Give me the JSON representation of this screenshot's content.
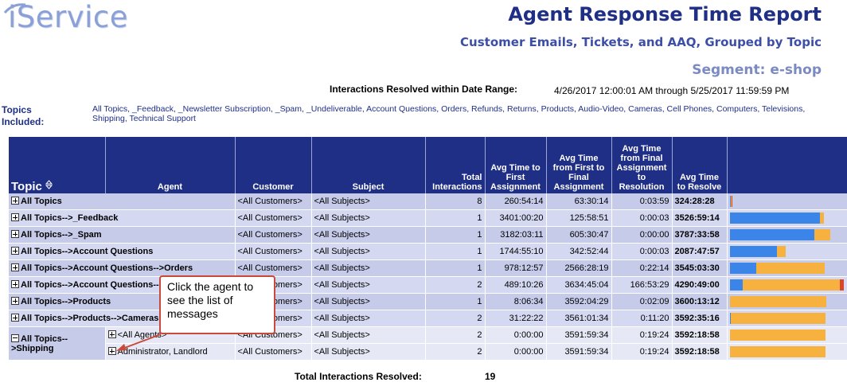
{
  "header": {
    "logo": "iService",
    "title": "Agent Response Time Report",
    "subtitle": "Customer Emails, Tickets, and AAQ, Grouped by Topic",
    "segment": "Segment: e-shop",
    "range_label": "Interactions Resolved within Date Range:",
    "range_value": "4/26/2017 12:00:01 AM through 5/25/2017 11:59:59 PM",
    "topics_label": "Topics Included:",
    "topics_list": "All Topics, _Feedback, _Newsletter Subscription, _Spam, _Undeliverable, Account Questions, Orders, Refunds, Returns, Products, Audio-Video, Cameras, Cell Phones, Computers, Televisions, Shipping, Technical Support"
  },
  "columns": {
    "topic": "Topic",
    "agent": "Agent",
    "customer": "Customer",
    "subject": "Subject",
    "total": "Total Interactions",
    "first": "Avg Time to First Assignment",
    "final": "Avg Time from First to Final Assignment",
    "resolution": "Avg Time from Final Assignment to Resolution",
    "resolve": "Avg Time to Resolve"
  },
  "rows": [
    {
      "topic": "All Topics",
      "agent": "",
      "customer": "<All Customers>",
      "subject": "<All Subjects>",
      "total": "8",
      "first": "260:54:14",
      "final": "63:30:14",
      "resolution": "0:03:59",
      "resolve": "324:28:28",
      "bar": [
        0.01,
        0.0025,
        0.0,
        0.0006
      ]
    },
    {
      "topic": "All Topics-->_Feedback",
      "agent": "",
      "customer": "<All Customers>",
      "subject": "<All Subjects>",
      "total": "1",
      "first": "3401:00:20",
      "final": "125:58:51",
      "resolution": "0:00:03",
      "resolve": "3526:59:14",
      "bar": [
        0.79,
        0.03,
        0.0,
        0.0
      ]
    },
    {
      "topic": "All Topics-->_Spam",
      "agent": "",
      "customer": "<All Customers>",
      "subject": "<All Subjects>",
      "total": "1",
      "first": "3182:03:11",
      "final": "605:30:47",
      "resolution": "0:00:00",
      "resolve": "3787:33:58",
      "bar": [
        0.74,
        0.14,
        0.0,
        0.0
      ]
    },
    {
      "topic": "All Topics-->Account Questions",
      "agent": "",
      "customer": "<All Customers>",
      "subject": "<All Subjects>",
      "total": "1",
      "first": "1744:55:10",
      "final": "342:52:44",
      "resolution": "0:00:03",
      "resolve": "2087:47:57",
      "bar": [
        0.41,
        0.08,
        0.0,
        0.0
      ]
    },
    {
      "topic": "All Topics-->Account Questions-->Orders",
      "agent": "",
      "customer": "<All Customers>",
      "subject": "<All Subjects>",
      "total": "1",
      "first": "978:12:57",
      "final": "2566:28:19",
      "resolution": "0:22:14",
      "resolve": "3545:03:30",
      "bar": [
        0.23,
        0.6,
        0.0,
        0.0
      ]
    },
    {
      "topic": "All Topics-->Account Questions-->Refunds",
      "agent": "",
      "customer": "<All Customers>",
      "subject": "<All Subjects>",
      "total": "2",
      "first": "489:10:26",
      "final": "3634:45:04",
      "resolution": "166:53:29",
      "resolve": "4290:49:00",
      "bar": [
        0.115,
        0.845,
        0.0,
        0.04
      ]
    },
    {
      "topic": "All Topics-->Products",
      "agent": "",
      "customer": "<All Customers>",
      "subject": "<All Subjects>",
      "total": "1",
      "first": "8:06:34",
      "final": "3592:04:29",
      "resolution": "0:02:09",
      "resolve": "3600:13:12",
      "bar": [
        0.002,
        0.84,
        0.0,
        0.0
      ]
    },
    {
      "topic": "All Topics-->Products-->Cameras",
      "agent": "",
      "customer": "<All Customers>",
      "subject": "<All Subjects>",
      "total": "2",
      "first": "31:22:22",
      "final": "3561:01:34",
      "resolution": "0:11:20",
      "resolve": "3592:35:16",
      "bar": [
        0.007,
        0.83,
        0.0,
        0.0
      ]
    }
  ],
  "shipping": {
    "topic": "All Topics-->Shipping",
    "sub_rows": [
      {
        "agent": "<All Agents>",
        "customer": "<All Customers>",
        "subject": "<All Subjects>",
        "total": "2",
        "first": "0:00:00",
        "final": "3591:59:34",
        "resolution": "0:19:24",
        "resolve": "3592:18:58",
        "bar": [
          0.0,
          0.837,
          0.0,
          0.0
        ]
      },
      {
        "agent": "Administrator, Landlord",
        "customer": "<All Customers>",
        "subject": "<All Subjects>",
        "total": "2",
        "first": "0:00:00",
        "final": "3591:59:34",
        "resolution": "0:19:24",
        "resolve": "3592:18:58",
        "bar": [
          0.0,
          0.837,
          0.0,
          0.0
        ]
      }
    ]
  },
  "callout": "Click the agent to see the list of messages",
  "footer": {
    "total_label": "Total Interactions Resolved:",
    "total_value": "19"
  },
  "colors": {
    "header_bg": "#1f2f86",
    "row_bg": "#c6cbea",
    "first_assignment": "#3b84e8",
    "final_assignment": "#f6b13e",
    "resolution": "#d9452b"
  }
}
